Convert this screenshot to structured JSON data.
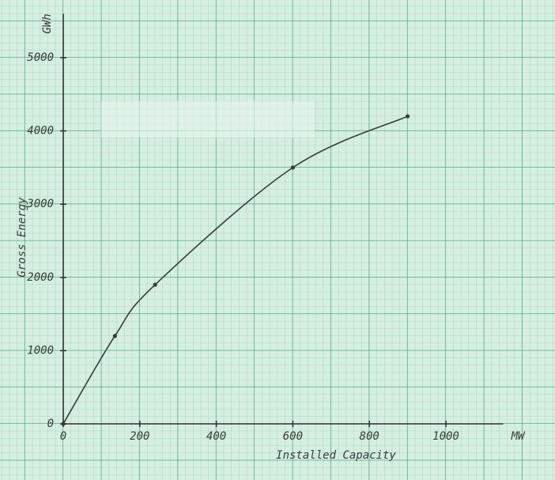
{
  "chart_data": {
    "type": "line",
    "x_label": "Installed Capacity",
    "x_unit": "MW",
    "y_label": "Gross Energy",
    "y_unit": "GWh",
    "x": [
      0,
      135,
      240,
      600,
      900
    ],
    "series": [
      {
        "color": "#3a3a3a",
        "values": [
          0,
          1200,
          1900,
          3500,
          4200
        ]
      }
    ],
    "xlim": [
      0,
      1150
    ],
    "ylim": [
      0,
      5600
    ],
    "xticks": [
      0,
      200,
      400,
      600,
      800,
      1000
    ],
    "yticks": [
      0,
      1000,
      2000,
      3000,
      4000,
      5000
    ],
    "markers": true
  }
}
